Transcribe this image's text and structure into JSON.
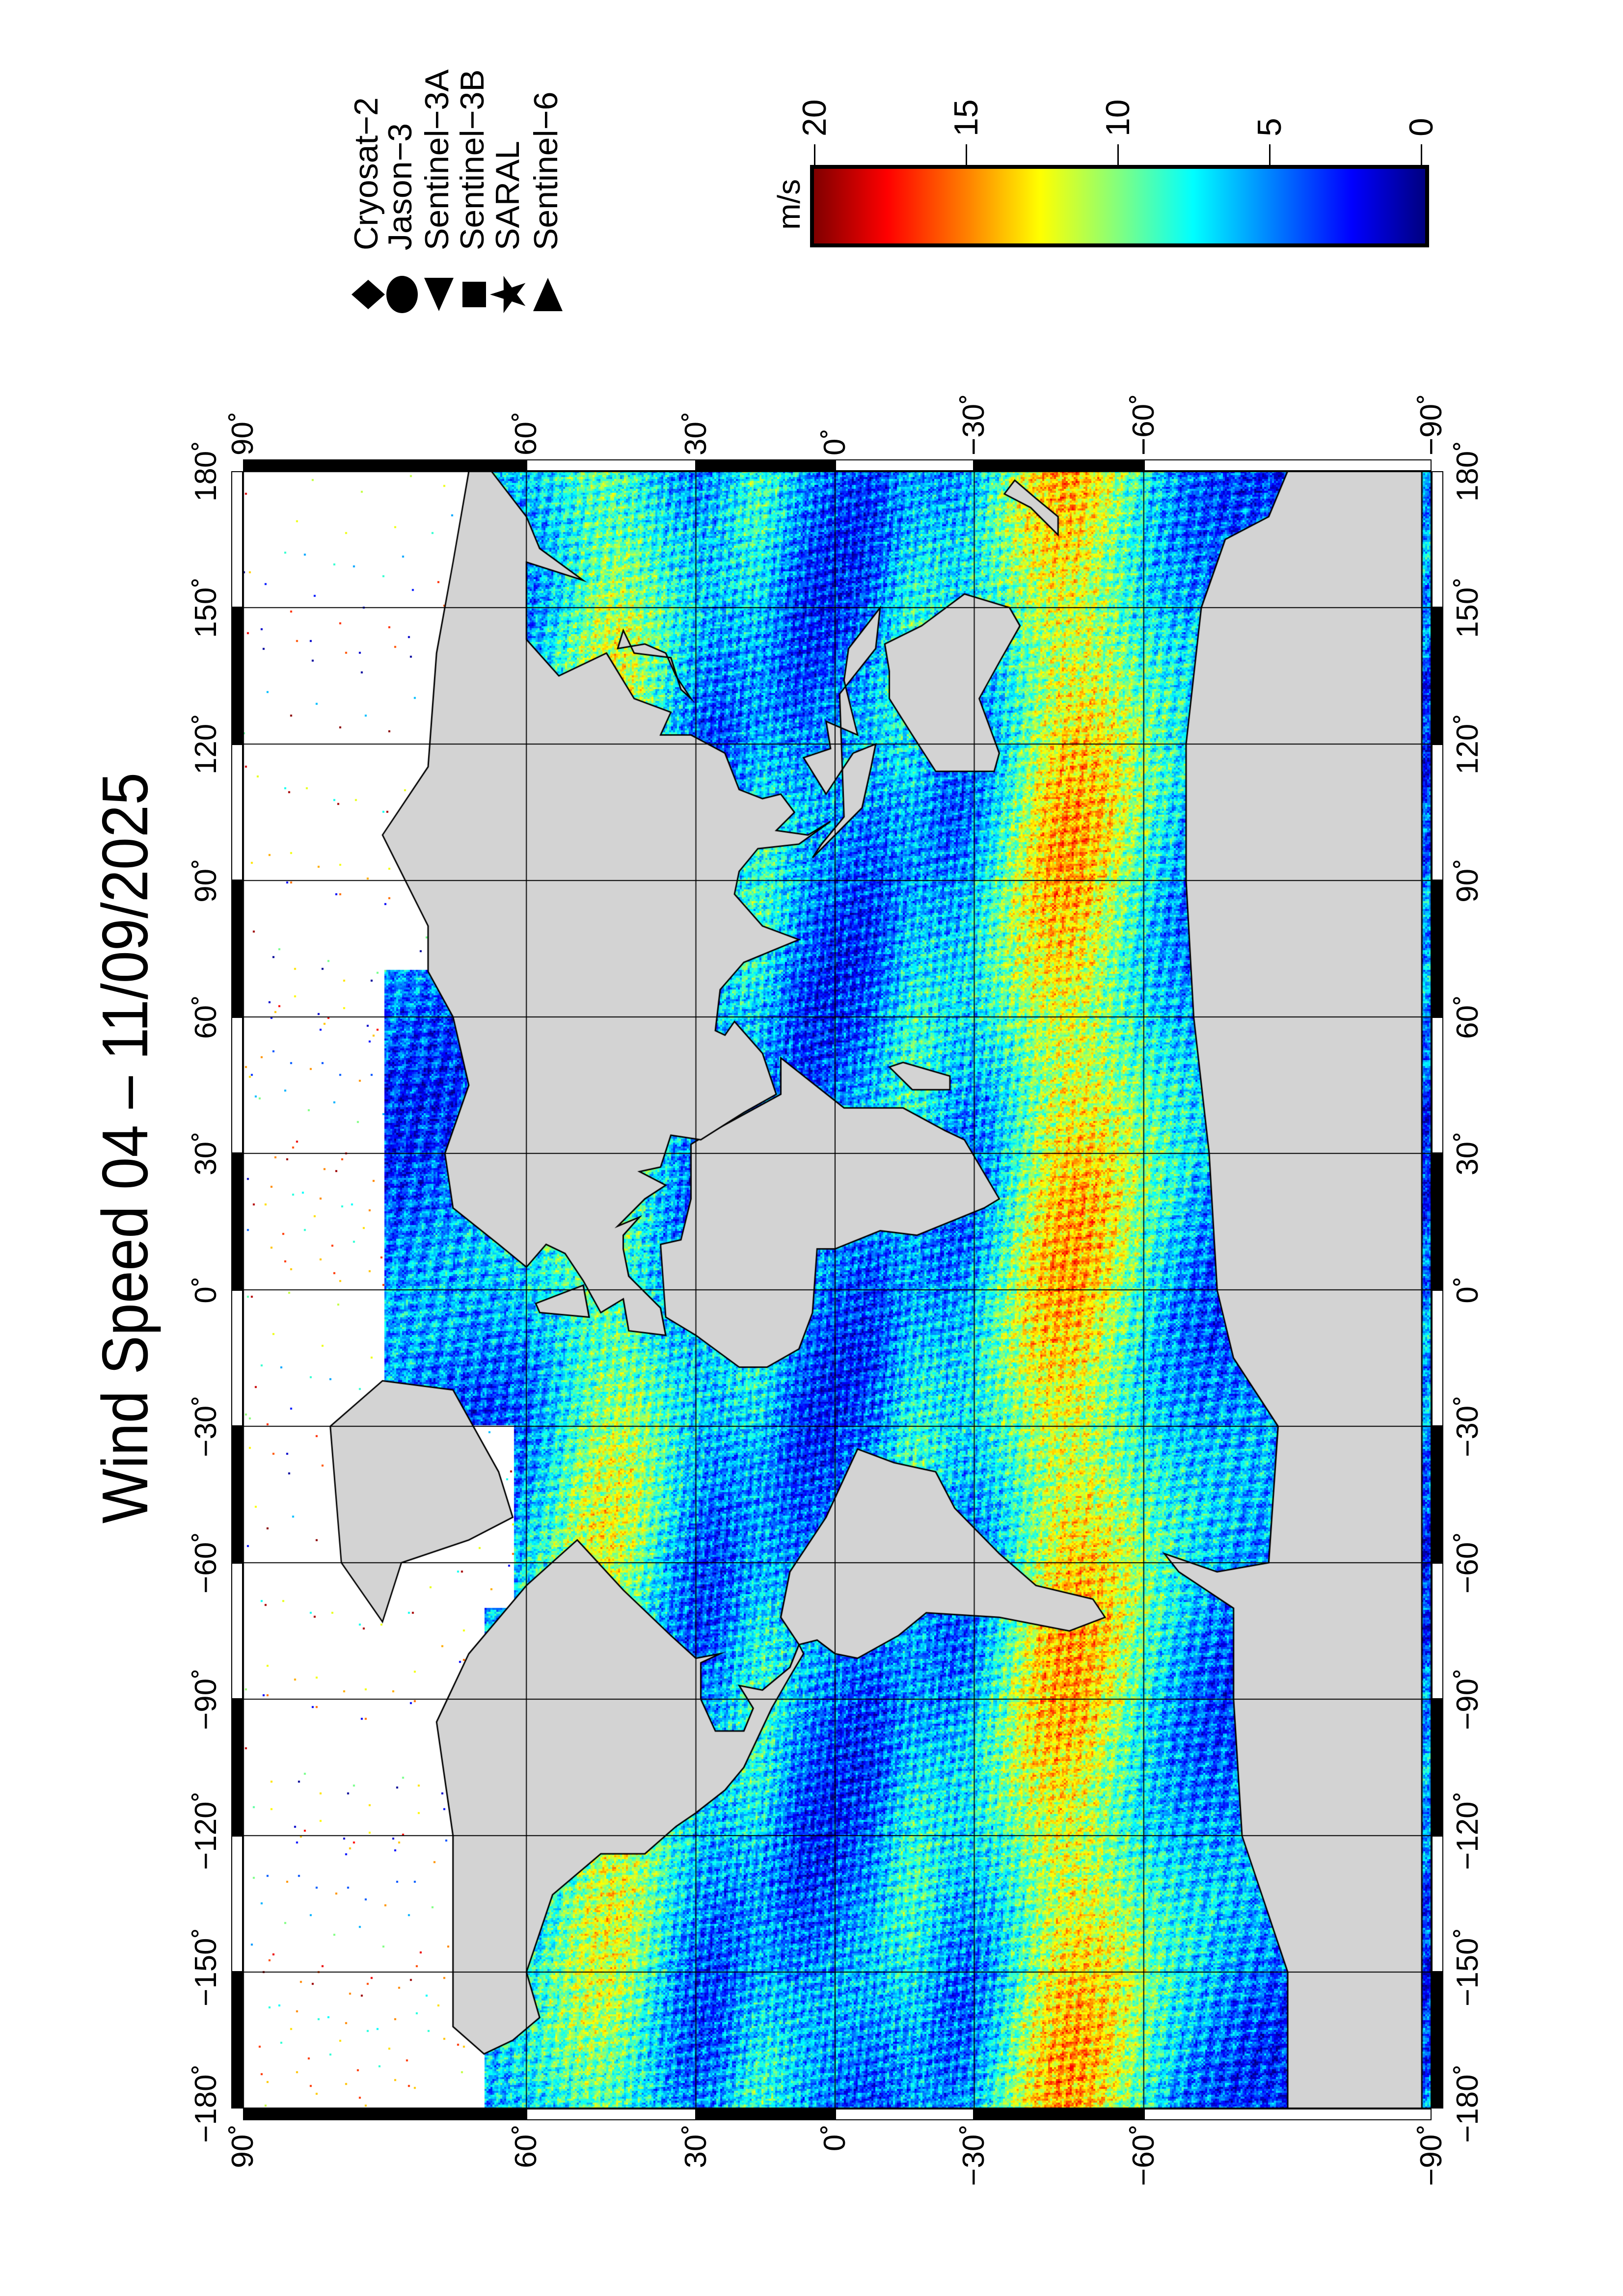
{
  "chart_data": {
    "type": "heatmap",
    "title": "Wind Speed 04 – 11/09/2025",
    "projection": "Miller",
    "colormap": "jet",
    "land_color": "#d3d3d3",
    "no_data_color": "#ffffff",
    "lat_ticks": [
      {
        "value": 90,
        "label": "90˚"
      },
      {
        "value": 60,
        "label": "60˚"
      },
      {
        "value": 30,
        "label": "30˚"
      },
      {
        "value": 0,
        "label": "0˚"
      },
      {
        "value": -30,
        "label": "−30˚"
      },
      {
        "value": -60,
        "label": "−60˚"
      },
      {
        "value": -90,
        "label": "−90˚"
      }
    ],
    "lon_ticks": [
      {
        "value": -180,
        "label": "−180˚"
      },
      {
        "value": -150,
        "label": "−150˚"
      },
      {
        "value": -120,
        "label": "−120˚"
      },
      {
        "value": -90,
        "label": "−90˚"
      },
      {
        "value": -60,
        "label": "−60˚"
      },
      {
        "value": -30,
        "label": "−30˚"
      },
      {
        "value": 0,
        "label": "0˚"
      },
      {
        "value": 30,
        "label": "30˚"
      },
      {
        "value": 60,
        "label": "60˚"
      },
      {
        "value": 90,
        "label": "90˚"
      },
      {
        "value": 120,
        "label": "120˚"
      },
      {
        "value": 150,
        "label": "150˚"
      },
      {
        "value": 180,
        "label": "180˚"
      }
    ],
    "xlim": [
      -180,
      180
    ],
    "ylim": [
      -90,
      90
    ],
    "grid": true,
    "colorbar": {
      "unit": "m/s",
      "min": 0,
      "max": 20,
      "ticks": [
        {
          "value": 0,
          "label": "0"
        },
        {
          "value": 5,
          "label": "5"
        },
        {
          "value": 10,
          "label": "10"
        },
        {
          "value": 15,
          "label": "15"
        },
        {
          "value": 20,
          "label": "20"
        }
      ]
    },
    "legend": [
      {
        "label": "Cryosat−2",
        "symbol": "diamond"
      },
      {
        "label": "Jason−3",
        "symbol": "circle"
      },
      {
        "label": "Sentinel−3A",
        "symbol": "triangle-left"
      },
      {
        "label": "Sentinel−3B",
        "symbol": "square"
      },
      {
        "label": "SARAL",
        "symbol": "star"
      },
      {
        "label": "Sentinel−6",
        "symbol": "triangle-right"
      }
    ]
  }
}
